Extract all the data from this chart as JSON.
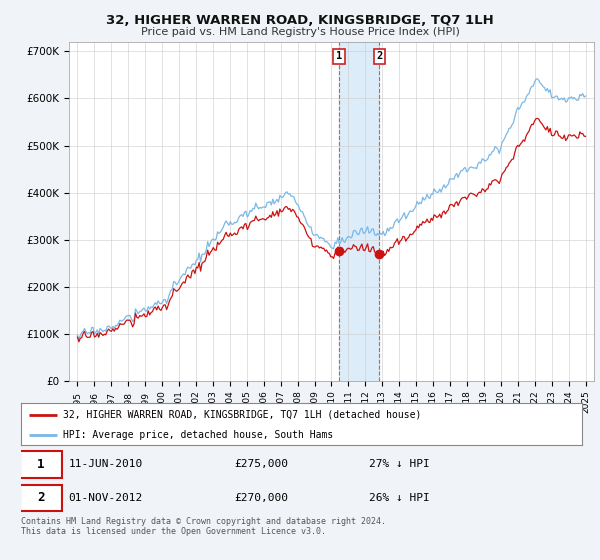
{
  "title": "32, HIGHER WARREN ROAD, KINGSBRIDGE, TQ7 1LH",
  "subtitle": "Price paid vs. HM Land Registry's House Price Index (HPI)",
  "ylabel_ticks": [
    "£0",
    "£100K",
    "£200K",
    "£300K",
    "£400K",
    "£500K",
    "£600K",
    "£700K"
  ],
  "ytick_vals": [
    0,
    100000,
    200000,
    300000,
    400000,
    500000,
    600000,
    700000
  ],
  "ylim": [
    0,
    720000
  ],
  "xlim_start": 1994.5,
  "xlim_end": 2025.5,
  "hpi_color": "#7ab8e8",
  "price_color": "#cc1111",
  "legend_label_price": "32, HIGHER WARREN ROAD, KINGSBRIDGE, TQ7 1LH (detached house)",
  "legend_label_hpi": "HPI: Average price, detached house, South Hams",
  "sale1_date": 2010.44,
  "sale1_price": 275000,
  "sale2_date": 2012.83,
  "sale2_price": 270000,
  "footer": "Contains HM Land Registry data © Crown copyright and database right 2024.\nThis data is licensed under the Open Government Licence v3.0.",
  "bg_color": "#f0f4f8",
  "plot_bg_color": "#ffffff",
  "highlight_color": "#d6eaf8"
}
